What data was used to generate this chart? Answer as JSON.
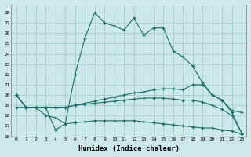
{
  "xlabel": "Humidex (Indice chaleur)",
  "bg_color": "#cce8e8",
  "grid_color": "#aad0d0",
  "line_color": "#1a7068",
  "xlim": [
    -0.5,
    23.5
  ],
  "ylim": [
    16,
    28.8
  ],
  "yticks": [
    16,
    17,
    18,
    19,
    20,
    21,
    22,
    23,
    24,
    25,
    26,
    27,
    28
  ],
  "xticks": [
    0,
    1,
    2,
    3,
    4,
    5,
    6,
    7,
    8,
    9,
    10,
    11,
    12,
    13,
    14,
    15,
    16,
    17,
    18,
    19,
    20,
    21,
    22,
    23
  ],
  "series1": [
    20.0,
    18.8,
    18.8,
    18.8,
    16.6,
    17.2,
    22.0,
    25.5,
    28.0,
    27.0,
    26.7,
    26.3,
    27.5,
    25.8,
    26.5,
    26.5,
    24.3,
    23.7,
    22.8,
    21.2,
    20.0,
    19.5,
    18.5,
    18.3
  ],
  "series2": [
    20.0,
    18.8,
    18.8,
    18.8,
    18.8,
    18.8,
    19.0,
    19.2,
    19.4,
    19.6,
    19.8,
    20.0,
    20.2,
    20.3,
    20.5,
    20.6,
    20.6,
    20.5,
    21.0,
    21.0,
    20.0,
    19.5,
    18.3,
    16.3
  ],
  "series3": [
    20.0,
    18.8,
    18.8,
    18.8,
    18.8,
    18.8,
    19.0,
    19.1,
    19.2,
    19.3,
    19.4,
    19.5,
    19.6,
    19.7,
    19.7,
    19.7,
    19.6,
    19.5,
    19.5,
    19.3,
    19.0,
    18.6,
    18.0,
    16.3
  ],
  "series4": [
    18.8,
    18.8,
    18.8,
    18.0,
    17.8,
    17.2,
    17.3,
    17.4,
    17.5,
    17.5,
    17.5,
    17.5,
    17.5,
    17.4,
    17.3,
    17.2,
    17.1,
    17.0,
    16.9,
    16.8,
    16.8,
    16.6,
    16.5,
    16.2
  ]
}
